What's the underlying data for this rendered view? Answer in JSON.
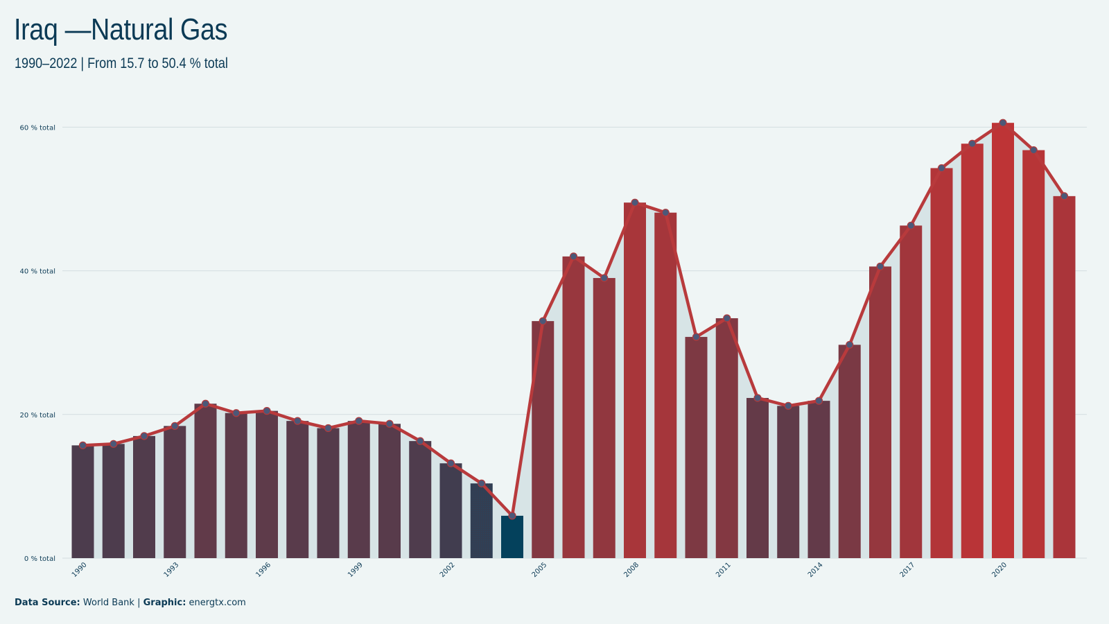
{
  "header": {
    "title": "Iraq —Natural Gas",
    "subtitle": "1990–2022 | From 15.7 to 50.4 % total"
  },
  "footer": {
    "source_label": "Data Source:",
    "source_value": "World Bank",
    "separator": "|",
    "graphic_label": "Graphic:",
    "graphic_value": "energtx.com"
  },
  "colors": {
    "background": "#eff5f5",
    "line": "#b83a3c",
    "low": "#04415c",
    "high": "#be3436",
    "area": "#d7e4e6",
    "grid": "#d3dde0",
    "text": "#0b3a55"
  },
  "chart_data": {
    "type": "bar",
    "x": [
      1990,
      1991,
      1992,
      1993,
      1994,
      1995,
      1996,
      1997,
      1998,
      1999,
      2000,
      2001,
      2002,
      2003,
      2004,
      2005,
      2006,
      2007,
      2008,
      2009,
      2010,
      2011,
      2012,
      2013,
      2014,
      2015,
      2016,
      2017,
      2018,
      2019,
      2020,
      2021,
      2022
    ],
    "values": [
      15.7,
      15.9,
      17.0,
      18.4,
      21.5,
      20.2,
      20.5,
      19.1,
      18.1,
      19.1,
      18.7,
      16.3,
      13.2,
      10.4,
      5.9,
      33.0,
      42.0,
      39.0,
      49.5,
      48.1,
      30.8,
      33.4,
      22.3,
      21.2,
      21.9,
      29.7,
      40.6,
      46.3,
      54.3,
      57.7,
      60.6,
      56.8,
      50.4
    ],
    "series": [
      {
        "type": "bar"
      },
      {
        "type": "line",
        "markers": true
      }
    ],
    "y_ticks": [
      {
        "value": 0,
        "label": "0 % total"
      },
      {
        "value": 20,
        "label": "20 % total"
      },
      {
        "value": 40,
        "label": "40 % total"
      },
      {
        "value": 60,
        "label": "60 % total"
      }
    ],
    "x_tick_labels": [
      "1990",
      "1993",
      "1996",
      "1999",
      "2002",
      "2005",
      "2008",
      "2011",
      "2014",
      "2017",
      "2020"
    ],
    "ylim": [
      0,
      65
    ],
    "grid": true,
    "legend": "none"
  }
}
